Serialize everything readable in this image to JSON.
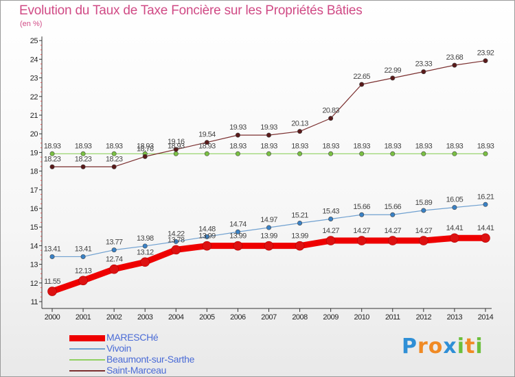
{
  "title": "Evolution du Taux de Taxe Foncière sur les Propriétés Bâties",
  "unit": "(en %)",
  "brand": {
    "letters": [
      "P",
      "r",
      "o",
      "x",
      "i",
      "t",
      "i"
    ],
    "colors": [
      "#2f8fd6",
      "#f08a24",
      "#f08a24",
      "#2f8fd6",
      "#6cbf3c",
      "#f08a24",
      "#6cbf3c"
    ]
  },
  "chart_data": {
    "type": "line",
    "title": "Evolution du Taux de Taxe Foncière sur les Propriétés Bâties",
    "ylabel": "(en %)",
    "xlabel": "",
    "x": [
      "2000",
      "2001",
      "2002",
      "2003",
      "2004",
      "2005",
      "2006",
      "2007",
      "2008",
      "2009",
      "2010",
      "2011",
      "2012",
      "2013",
      "2014"
    ],
    "ylim": [
      11,
      25
    ],
    "yticks": [
      "11",
      "12",
      "13",
      "14",
      "15",
      "16",
      "17",
      "18",
      "19",
      "20",
      "21",
      "22",
      "23",
      "24",
      "25"
    ],
    "grid": false,
    "legend": "bottom-left",
    "series": [
      {
        "name": "MARESCHé",
        "color": "#ee0000",
        "point_color": "#dd1111",
        "values": [
          11.55,
          12.13,
          12.74,
          13.12,
          13.78,
          13.99,
          13.99,
          13.99,
          13.99,
          14.27,
          14.27,
          14.27,
          14.27,
          14.41,
          14.41
        ],
        "labels": [
          "11.55",
          "12.13",
          "12.74",
          "13.12",
          "13.78",
          "13.99",
          "13.99",
          "13.99",
          "13.99",
          "14.27",
          "14.27",
          "14.27",
          "14.27",
          "14.41",
          "14.41"
        ]
      },
      {
        "name": "Vivoin",
        "color": "#6fa0d0",
        "point_color": "#3a82c6",
        "values": [
          13.41,
          13.41,
          13.77,
          13.98,
          14.22,
          14.48,
          14.74,
          14.97,
          15.21,
          15.43,
          15.66,
          15.66,
          15.89,
          16.05,
          16.21
        ],
        "labels": [
          "13.41",
          "13.41",
          "13.77",
          "13.98",
          "14.22",
          "14.48",
          "14.74",
          "14.97",
          "15.21",
          "15.43",
          "15.66",
          "15.66",
          "15.89",
          "16.05",
          "16.21"
        ]
      },
      {
        "name": "Beaumont-sur-Sarthe",
        "color": "#8fd060",
        "point_color": "#7ac043",
        "values": [
          18.93,
          18.93,
          18.93,
          18.93,
          18.93,
          18.93,
          18.93,
          18.93,
          18.93,
          18.93,
          18.93,
          18.93,
          18.93,
          18.93,
          18.93
        ],
        "labels": [
          "18.93",
          "18.93",
          "18.93",
          "18.93",
          "18.93",
          "18.93",
          "18.93",
          "18.93",
          "18.93",
          "18.93",
          "18.93",
          "18.93",
          "18.93",
          "18.93",
          "18.93"
        ]
      },
      {
        "name": "Saint-Marceau",
        "color": "#7a2e2e",
        "point_color": "#5a1a1a",
        "values": [
          18.23,
          18.23,
          18.23,
          18.78,
          19.16,
          19.54,
          19.93,
          19.93,
          20.13,
          20.83,
          22.65,
          22.99,
          23.33,
          23.68,
          23.92
        ],
        "labels": [
          "18.23",
          "18.23",
          "18.23",
          "18.78",
          "19.16",
          "19.54",
          "19.93",
          "19.93",
          "20.13",
          "20.83",
          "22.65",
          "22.99",
          "23.33",
          "23.68",
          "23.92"
        ]
      }
    ]
  }
}
